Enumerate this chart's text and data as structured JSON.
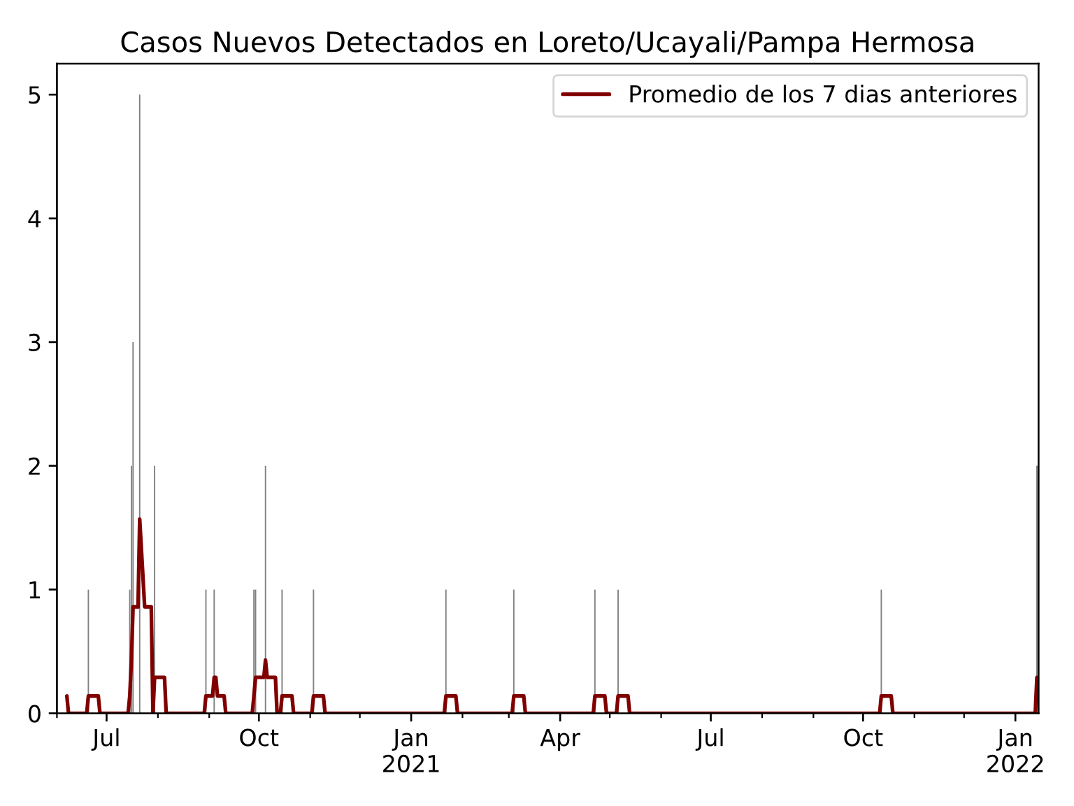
{
  "chart_data": {
    "type": "line",
    "title": "Casos Nuevos Detectados en Loreto/Ucayali/Pampa Hermosa",
    "xlim": [
      "2020-06-01",
      "2022-01-15"
    ],
    "xticks": [
      {
        "value": "2020-06-01",
        "label": null
      },
      {
        "value": "2020-07-01",
        "label": "Jul"
      },
      {
        "value": "2020-08-01",
        "label": null
      },
      {
        "value": "2020-09-01",
        "label": null
      },
      {
        "value": "2020-10-01",
        "label": "Oct"
      },
      {
        "value": "2020-11-01",
        "label": null
      },
      {
        "value": "2020-12-01",
        "label": null
      },
      {
        "value": "2021-01-01",
        "label": "Jan\n2021"
      },
      {
        "value": "2021-02-01",
        "label": null
      },
      {
        "value": "2021-03-01",
        "label": null
      },
      {
        "value": "2021-04-01",
        "label": "Apr"
      },
      {
        "value": "2021-05-01",
        "label": null
      },
      {
        "value": "2021-06-01",
        "label": null
      },
      {
        "value": "2021-07-01",
        "label": "Jul"
      },
      {
        "value": "2021-08-01",
        "label": null
      },
      {
        "value": "2021-09-01",
        "label": null
      },
      {
        "value": "2021-10-01",
        "label": "Oct"
      },
      {
        "value": "2021-11-01",
        "label": null
      },
      {
        "value": "2021-12-01",
        "label": null
      },
      {
        "value": "2022-01-01",
        "label": "Jan\n2022"
      }
    ],
    "ylim": [
      0,
      5.25
    ],
    "yticks": [
      0,
      1,
      2,
      3,
      4,
      5
    ],
    "legend": "top right",
    "series": [
      {
        "type": "bar",
        "color": "#808080",
        "x": [
          "2020-06-20",
          "2020-07-15",
          "2020-07-16",
          "2020-07-17",
          "2020-07-21",
          "2020-07-30",
          "2020-08-30",
          "2020-09-04",
          "2020-09-28",
          "2020-09-29",
          "2020-10-05",
          "2020-10-15",
          "2020-11-03",
          "2021-01-22",
          "2021-03-04",
          "2021-04-22",
          "2021-05-06",
          "2021-10-12",
          "2022-01-14"
        ],
        "values": [
          1,
          1,
          2,
          3,
          5,
          2,
          1,
          1,
          1,
          1,
          2,
          1,
          1,
          1,
          1,
          1,
          1,
          1,
          2
        ]
      },
      {
        "name": "Promedio de los 7 dias anteriores",
        "color": "#800000",
        "x": [
          "2020-06-07",
          "2020-06-08",
          "2020-06-19",
          "2020-06-20",
          "2020-06-26",
          "2020-06-27",
          "2020-07-14",
          "2020-07-15",
          "2020-07-16",
          "2020-07-17",
          "2020-07-20",
          "2020-07-21",
          "2020-07-24",
          "2020-07-28",
          "2020-07-29",
          "2020-07-30",
          "2020-08-05",
          "2020-08-06",
          "2020-08-29",
          "2020-08-30",
          "2020-09-03",
          "2020-09-04",
          "2020-09-05",
          "2020-09-06",
          "2020-09-10",
          "2020-09-11",
          "2020-09-27",
          "2020-09-28",
          "2020-09-29",
          "2020-10-04",
          "2020-10-05",
          "2020-10-06",
          "2020-10-11",
          "2020-10-12",
          "2020-10-14",
          "2020-10-15",
          "2020-10-21",
          "2020-10-22",
          "2020-11-02",
          "2020-11-03",
          "2020-11-09",
          "2020-11-10",
          "2021-01-21",
          "2021-01-22",
          "2021-01-28",
          "2021-01-29",
          "2021-03-03",
          "2021-03-04",
          "2021-03-10",
          "2021-03-11",
          "2021-04-21",
          "2021-04-22",
          "2021-04-28",
          "2021-04-29",
          "2021-05-05",
          "2021-05-06",
          "2021-05-12",
          "2021-05-13",
          "2021-10-11",
          "2021-10-12",
          "2021-10-18",
          "2021-10-19",
          "2022-01-13",
          "2022-01-14"
        ],
        "values": [
          0.14,
          0,
          0,
          0.14,
          0.14,
          0,
          0,
          0.14,
          0.43,
          0.86,
          0.86,
          1.57,
          0.86,
          0.86,
          0,
          0.29,
          0.29,
          0,
          0,
          0.14,
          0.14,
          0.29,
          0.29,
          0.14,
          0.14,
          0,
          0,
          0.14,
          0.29,
          0.29,
          0.43,
          0.29,
          0.29,
          0,
          0,
          0.14,
          0.14,
          0,
          0,
          0.14,
          0.14,
          0,
          0,
          0.14,
          0.14,
          0,
          0,
          0.14,
          0.14,
          0,
          0,
          0.14,
          0.14,
          0,
          0,
          0.14,
          0.14,
          0,
          0,
          0.14,
          0.14,
          0,
          0,
          0.29
        ]
      }
    ]
  }
}
